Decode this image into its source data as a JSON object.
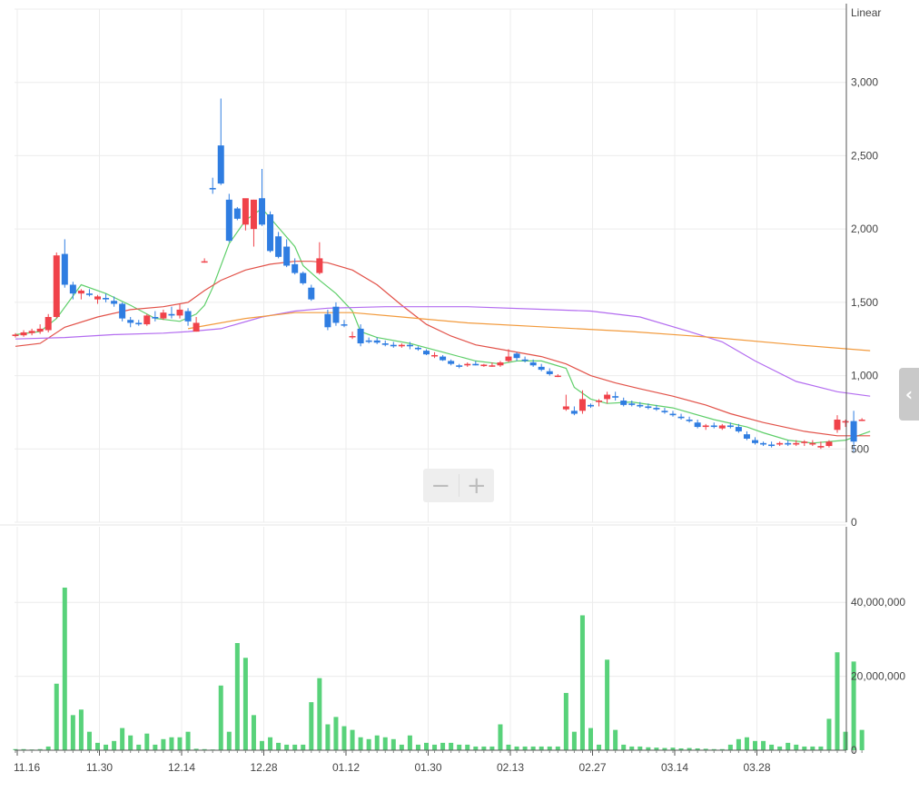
{
  "scale_label": "Linear",
  "zoom": {
    "minus": "−",
    "plus": "+"
  },
  "side_toggle": "‹",
  "colors": {
    "up": "#f0424a",
    "down": "#2f7de1",
    "volume": "#58d27a",
    "ma5": "#5fcf6a",
    "ma20": "#e25148",
    "ma60": "#b36cf0",
    "ma120": "#f29a3c",
    "grid": "#ececec"
  },
  "chart_data": [
    {
      "type": "candlestick",
      "x_tick_labels": [
        "11.16",
        "11.30",
        "12.14",
        "12.28",
        "01.12",
        "01.30",
        "02.13",
        "02.27",
        "03.14",
        "03.28"
      ],
      "x_tick_index": [
        0,
        10,
        20,
        30,
        40,
        50,
        60,
        70,
        80,
        90
      ],
      "y_ticks": [
        0,
        500,
        1000,
        1500,
        2000,
        2500,
        3000
      ],
      "y_tick_labels": [
        "0",
        "500",
        "1,000",
        "1,500",
        "2,000",
        "2,500",
        "3,000"
      ],
      "ylim": [
        0,
        3500
      ],
      "grid": true,
      "ohlc": [
        [
          1270,
          1290,
          1260,
          1280
        ],
        [
          1275,
          1310,
          1265,
          1295
        ],
        [
          1290,
          1320,
          1275,
          1305
        ],
        [
          1300,
          1350,
          1285,
          1320
        ],
        [
          1310,
          1420,
          1295,
          1400
        ],
        [
          1400,
          1840,
          1390,
          1820
        ],
        [
          1830,
          1930,
          1600,
          1620
        ],
        [
          1620,
          1640,
          1520,
          1560
        ],
        [
          1560,
          1590,
          1520,
          1580
        ],
        [
          1560,
          1590,
          1540,
          1550
        ],
        [
          1520,
          1550,
          1490,
          1540
        ],
        [
          1530,
          1560,
          1500,
          1520
        ],
        [
          1510,
          1540,
          1470,
          1490
        ],
        [
          1490,
          1500,
          1370,
          1390
        ],
        [
          1380,
          1400,
          1330,
          1360
        ],
        [
          1360,
          1380,
          1340,
          1350
        ],
        [
          1350,
          1420,
          1340,
          1410
        ],
        [
          1400,
          1440,
          1370,
          1390
        ],
        [
          1390,
          1450,
          1380,
          1430
        ],
        [
          1420,
          1470,
          1390,
          1410
        ],
        [
          1410,
          1490,
          1390,
          1450
        ],
        [
          1440,
          1460,
          1340,
          1370
        ],
        [
          1300,
          1400,
          1300,
          1360
        ],
        [
          1780,
          1800,
          1770,
          1780
        ],
        [
          2280,
          2350,
          2240,
          2270
        ],
        [
          2570,
          2890,
          2300,
          2310
        ],
        [
          2200,
          2240,
          1910,
          1920
        ],
        [
          2140,
          2150,
          2060,
          2070
        ],
        [
          2030,
          2200,
          1990,
          2210
        ],
        [
          2000,
          2200,
          1880,
          2200
        ],
        [
          2210,
          2410,
          2020,
          2030
        ],
        [
          2100,
          2120,
          1840,
          1850
        ],
        [
          1950,
          1980,
          1800,
          1810
        ],
        [
          1880,
          1930,
          1740,
          1750
        ],
        [
          1760,
          1800,
          1690,
          1700
        ],
        [
          1700,
          1710,
          1620,
          1630
        ],
        [
          1600,
          1620,
          1510,
          1520
        ],
        [
          1700,
          1910,
          1690,
          1800
        ],
        [
          1420,
          1450,
          1310,
          1330
        ],
        [
          1470,
          1500,
          1340,
          1360
        ],
        [
          1350,
          1380,
          1330,
          1345
        ],
        [
          1270,
          1300,
          1250,
          1270
        ],
        [
          1320,
          1350,
          1200,
          1220
        ],
        [
          1240,
          1260,
          1220,
          1230
        ],
        [
          1240,
          1260,
          1215,
          1225
        ],
        [
          1220,
          1240,
          1200,
          1210
        ],
        [
          1210,
          1230,
          1190,
          1200
        ],
        [
          1200,
          1220,
          1190,
          1210
        ],
        [
          1210,
          1230,
          1180,
          1200
        ],
        [
          1190,
          1200,
          1170,
          1180
        ],
        [
          1170,
          1180,
          1140,
          1145
        ],
        [
          1140,
          1160,
          1120,
          1140
        ],
        [
          1130,
          1140,
          1100,
          1105
        ],
        [
          1100,
          1110,
          1070,
          1080
        ],
        [
          1070,
          1080,
          1050,
          1060
        ],
        [
          1070,
          1090,
          1060,
          1080
        ],
        [
          1080,
          1100,
          1070,
          1070
        ],
        [
          1065,
          1080,
          1060,
          1075
        ],
        [
          1070,
          1090,
          1060,
          1070
        ],
        [
          1070,
          1100,
          1060,
          1090
        ],
        [
          1100,
          1180,
          1090,
          1130
        ],
        [
          1150,
          1160,
          1100,
          1120
        ],
        [
          1110,
          1130,
          1090,
          1100
        ],
        [
          1090,
          1110,
          1060,
          1070
        ],
        [
          1060,
          1080,
          1030,
          1040
        ],
        [
          1030,
          1050,
          1000,
          1010
        ],
        [
          1000,
          1010,
          990,
          1000
        ],
        [
          770,
          870,
          760,
          790
        ],
        [
          760,
          790,
          730,
          740
        ],
        [
          760,
          900,
          740,
          840
        ],
        [
          800,
          810,
          780,
          790
        ],
        [
          820,
          840,
          790,
          830
        ],
        [
          840,
          890,
          810,
          870
        ],
        [
          860,
          890,
          830,
          850
        ],
        [
          830,
          850,
          790,
          800
        ],
        [
          810,
          830,
          790,
          800
        ],
        [
          800,
          820,
          780,
          790
        ],
        [
          790,
          810,
          770,
          780
        ],
        [
          780,
          800,
          760,
          770
        ],
        [
          760,
          780,
          740,
          750
        ],
        [
          740,
          760,
          720,
          730
        ],
        [
          720,
          740,
          700,
          710
        ],
        [
          700,
          720,
          680,
          690
        ],
        [
          680,
          700,
          640,
          650
        ],
        [
          650,
          670,
          630,
          660
        ],
        [
          660,
          680,
          640,
          650
        ],
        [
          640,
          670,
          630,
          660
        ],
        [
          660,
          680,
          640,
          650
        ],
        [
          650,
          670,
          610,
          620
        ],
        [
          600,
          620,
          560,
          570
        ],
        [
          560,
          580,
          530,
          540
        ],
        [
          540,
          550,
          520,
          530
        ],
        [
          530,
          550,
          510,
          520
        ],
        [
          530,
          550,
          520,
          540
        ],
        [
          540,
          560,
          520,
          530
        ],
        [
          530,
          560,
          520,
          540
        ],
        [
          540,
          560,
          520,
          550
        ],
        [
          530,
          560,
          520,
          540
        ],
        [
          510,
          550,
          500,
          520
        ],
        [
          520,
          560,
          510,
          550
        ],
        [
          630,
          730,
          610,
          700
        ],
        [
          680,
          700,
          650,
          690
        ],
        [
          690,
          760,
          480,
          550
        ],
        [
          700,
          710,
          690,
          700
        ]
      ],
      "ma_series": [
        {
          "key": "ma5",
          "points": [
            [
              0,
              1280
            ],
            [
              3,
              1300
            ],
            [
              5,
              1390
            ],
            [
              8,
              1620
            ],
            [
              11,
              1560
            ],
            [
              14,
              1480
            ],
            [
              17,
              1390
            ],
            [
              20,
              1370
            ],
            [
              22,
              1420
            ],
            [
              23,
              1480
            ],
            [
              24,
              1600
            ],
            [
              26,
              1900
            ],
            [
              28,
              2060
            ],
            [
              30,
              2140
            ],
            [
              32,
              2010
            ],
            [
              34,
              1880
            ],
            [
              35,
              1750
            ],
            [
              37,
              1650
            ],
            [
              39,
              1560
            ],
            [
              41,
              1440
            ],
            [
              42,
              1300
            ],
            [
              44,
              1260
            ],
            [
              48,
              1220
            ],
            [
              52,
              1160
            ],
            [
              56,
              1100
            ],
            [
              59,
              1080
            ],
            [
              61,
              1100
            ],
            [
              64,
              1100
            ],
            [
              67,
              1050
            ],
            [
              68,
              920
            ],
            [
              70,
              840
            ],
            [
              72,
              810
            ],
            [
              75,
              820
            ],
            [
              80,
              780
            ],
            [
              85,
              700
            ],
            [
              89,
              650
            ],
            [
              91,
              610
            ],
            [
              94,
              560
            ],
            [
              97,
              540
            ],
            [
              101,
              560
            ],
            [
              104,
              620
            ]
          ]
        },
        {
          "key": "ma20",
          "points": [
            [
              0,
              1200
            ],
            [
              3,
              1220
            ],
            [
              6,
              1330
            ],
            [
              10,
              1400
            ],
            [
              14,
              1450
            ],
            [
              18,
              1470
            ],
            [
              21,
              1500
            ],
            [
              23,
              1580
            ],
            [
              25,
              1650
            ],
            [
              28,
              1720
            ],
            [
              31,
              1760
            ],
            [
              34,
              1780
            ],
            [
              36,
              1780
            ],
            [
              38,
              1770
            ],
            [
              41,
              1720
            ],
            [
              44,
              1620
            ],
            [
              47,
              1480
            ],
            [
              50,
              1350
            ],
            [
              53,
              1270
            ],
            [
              56,
              1210
            ],
            [
              60,
              1170
            ],
            [
              64,
              1130
            ],
            [
              67,
              1080
            ],
            [
              70,
              1000
            ],
            [
              73,
              950
            ],
            [
              76,
              910
            ],
            [
              80,
              860
            ],
            [
              84,
              800
            ],
            [
              87,
              740
            ],
            [
              91,
              680
            ],
            [
              96,
              620
            ],
            [
              100,
              590
            ],
            [
              104,
              590
            ]
          ]
        },
        {
          "key": "ma60",
          "points": [
            [
              0,
              1250
            ],
            [
              6,
              1260
            ],
            [
              12,
              1280
            ],
            [
              18,
              1290
            ],
            [
              21,
              1300
            ],
            [
              25,
              1320
            ],
            [
              30,
              1400
            ],
            [
              34,
              1440
            ],
            [
              38,
              1460
            ],
            [
              45,
              1470
            ],
            [
              55,
              1470
            ],
            [
              65,
              1450
            ],
            [
              70,
              1440
            ],
            [
              76,
              1400
            ],
            [
              82,
              1300
            ],
            [
              86,
              1230
            ],
            [
              90,
              1100
            ],
            [
              95,
              960
            ],
            [
              100,
              890
            ],
            [
              104,
              860
            ]
          ]
        },
        {
          "key": "ma120",
          "points": [
            [
              21,
              1320
            ],
            [
              28,
              1390
            ],
            [
              34,
              1430
            ],
            [
              41,
              1430
            ],
            [
              47,
              1400
            ],
            [
              55,
              1360
            ],
            [
              65,
              1330
            ],
            [
              75,
              1300
            ],
            [
              85,
              1260
            ],
            [
              95,
              1210
            ],
            [
              104,
              1170
            ]
          ]
        }
      ]
    },
    {
      "type": "bar",
      "series_label": "volume",
      "y_ticks": [
        0,
        20000000,
        40000000
      ],
      "y_tick_labels": [
        "0",
        "20,000,000",
        "40,000,000"
      ],
      "ylim": [
        0,
        58000000
      ],
      "grid": true,
      "values": [
        300000,
        300000,
        200000,
        300000,
        1000000,
        18000000,
        44000000,
        9500000,
        11000000,
        5000000,
        2000000,
        1500000,
        2500000,
        6000000,
        4000000,
        1500000,
        4500000,
        1500000,
        3000000,
        3500000,
        3500000,
        5000000,
        400000,
        300000,
        200000,
        17500000,
        5000000,
        29000000,
        25000000,
        9500000,
        2500000,
        3500000,
        2000000,
        1500000,
        1500000,
        1500000,
        13000000,
        19500000,
        7000000,
        9000000,
        6500000,
        5500000,
        3500000,
        3000000,
        4000000,
        3500000,
        3000000,
        1500000,
        4000000,
        1500000,
        2000000,
        1500000,
        2000000,
        2000000,
        1500000,
        1500000,
        1000000,
        1000000,
        1000000,
        7000000,
        1500000,
        1000000,
        1000000,
        1000000,
        1000000,
        1000000,
        1000000,
        15500000,
        5000000,
        36500000,
        6000000,
        1500000,
        24500000,
        5500000,
        1500000,
        1000000,
        1000000,
        800000,
        700000,
        600000,
        700000,
        500000,
        600000,
        500000,
        400000,
        300000,
        300000,
        1500000,
        3000000,
        3500000,
        2500000,
        2500000,
        1500000,
        1000000,
        2000000,
        1500000,
        1000000,
        1000000,
        1000000,
        8500000,
        26500000,
        5000000,
        24000000,
        5500000
      ]
    }
  ]
}
